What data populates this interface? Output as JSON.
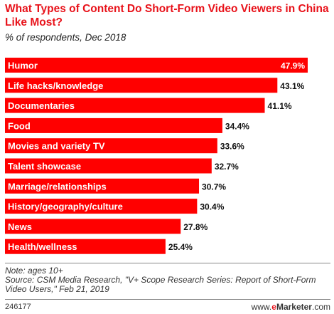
{
  "title": "What Types of Content Do Short-Form Video Viewers in China Like Most?",
  "subtitle": "% of respondents, Dec 2018",
  "note": "Note: ages 10+",
  "source": "Source: CSM Media Research, \"V+ Scope Research Series: Report of Short-Form Video Users,\" Feb 21, 2019",
  "chart_id": "246177",
  "brand": {
    "prefix": "www.",
    "e": "e",
    "name": "Marketer",
    "suffix": ".com"
  },
  "colors": {
    "bar": "#ff0000",
    "title": "#e8121a",
    "label_light": "#ffffff",
    "value_dark": "#111111"
  },
  "chart_data": {
    "type": "bar",
    "orientation": "horizontal",
    "categories": [
      "Humor",
      "Life hacks/knowledge",
      "Documentaries",
      "Food",
      "Movies and variety TV",
      "Talent showcase",
      "Marriage/relationships",
      "History/geography/culture",
      "News",
      "Health/wellness"
    ],
    "values": [
      47.9,
      43.1,
      41.1,
      34.4,
      33.6,
      32.7,
      30.7,
      30.4,
      27.8,
      25.4
    ],
    "value_labels": [
      "47.9%",
      "43.1%",
      "41.1%",
      "34.4%",
      "33.6%",
      "32.7%",
      "30.7%",
      "30.4%",
      "27.8%",
      "25.4%"
    ],
    "xlim": [
      0,
      47.9
    ]
  }
}
